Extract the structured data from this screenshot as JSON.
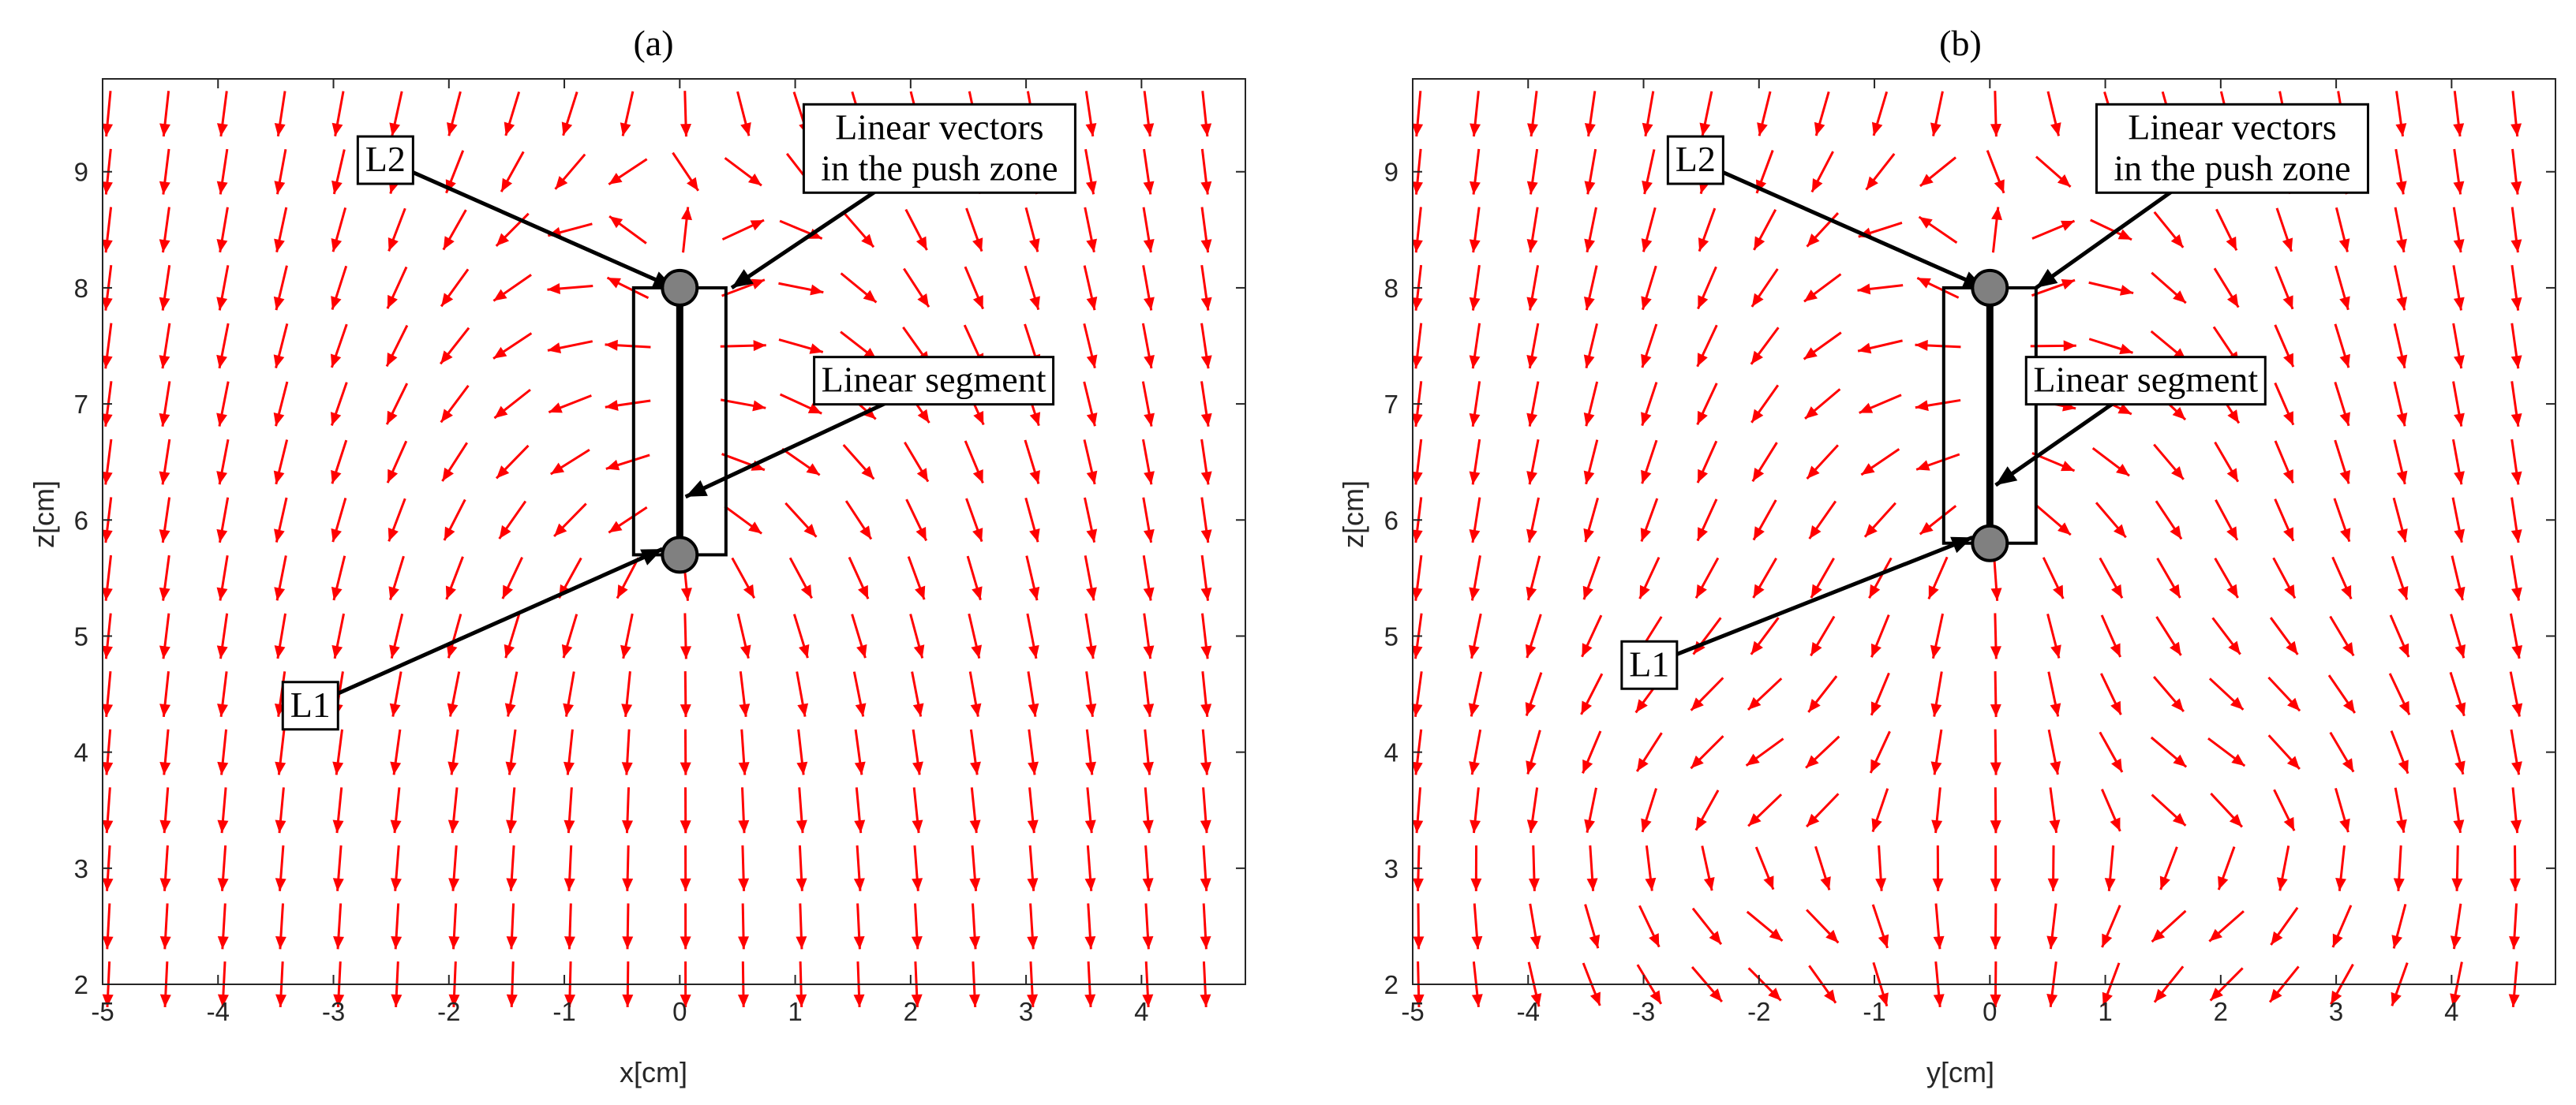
{
  "chart_data": [
    {
      "type": "quiver",
      "title": "(a)",
      "xlabel": "x[cm]",
      "ylabel": "z[cm]",
      "xlim": [
        -5,
        4.9
      ],
      "ylim": [
        2,
        9.8
      ],
      "xticks": [
        "-5",
        "-4",
        "-3",
        "-2",
        "-1",
        "0",
        "1",
        "2",
        "3",
        "4"
      ],
      "yticks": [
        "2",
        "3",
        "4",
        "5",
        "6",
        "7",
        "8",
        "9"
      ],
      "grid": false,
      "arrow_color": "#ff0000",
      "segment": {
        "x": 0,
        "z_bottom": 5.7,
        "z_top": 8.0
      },
      "rectangle": {
        "x_min": -0.4,
        "x_max": 0.4,
        "z_min": 5.7,
        "z_max": 8.0
      },
      "points": [
        {
          "name": "L1",
          "x": 0,
          "z": 5.7
        },
        {
          "name": "L2",
          "x": 0,
          "z": 8.0
        }
      ],
      "annotations": [
        {
          "text": "L2",
          "target_x": -0.05,
          "target_z": 8.0,
          "text_x": -2.55,
          "text_z": 9.1
        },
        {
          "text": "L1",
          "target_x": -0.15,
          "target_z": 5.75,
          "text_x": -3.2,
          "text_z": 4.4
        },
        {
          "text": "Linear vectors",
          "text2": "in the push zone",
          "target_x": 0.45,
          "target_z": 8.0,
          "text_x": 2.25,
          "text_z": 9.2
        },
        {
          "text": "Linear segment",
          "target_x": 0.05,
          "target_z": 6.2,
          "text_x": 2.2,
          "text_z": 7.2
        }
      ],
      "field": {
        "grid_x_step": 0.5,
        "grid_z_step": 0.5,
        "model": "repelling_segment_a"
      }
    },
    {
      "type": "quiver",
      "title": "(b)",
      "xlabel": "y[cm]",
      "ylabel": "z[cm]",
      "xlim": [
        -5,
        4.9
      ],
      "ylim": [
        2,
        9.8
      ],
      "xticks": [
        "-5",
        "-4",
        "-3",
        "-2",
        "-1",
        "0",
        "1",
        "2",
        "3",
        "4"
      ],
      "yticks": [
        "2",
        "3",
        "4",
        "5",
        "6",
        "7",
        "8",
        "9"
      ],
      "grid": false,
      "arrow_color": "#ff0000",
      "segment": {
        "x": 0,
        "z_bottom": 5.8,
        "z_top": 8.0
      },
      "rectangle": {
        "x_min": -0.4,
        "x_max": 0.4,
        "z_min": 5.8,
        "z_max": 8.0
      },
      "points": [
        {
          "name": "L1",
          "x": 0,
          "z": 5.8
        },
        {
          "name": "L2",
          "x": 0,
          "z": 8.0
        }
      ],
      "annotations": [
        {
          "text": "L2",
          "target_x": -0.05,
          "target_z": 8.0,
          "text_x": -2.55,
          "text_z": 9.1
        },
        {
          "text": "L1",
          "target_x": -0.15,
          "target_z": 5.85,
          "text_x": -2.95,
          "text_z": 4.75
        },
        {
          "text": "Linear vectors",
          "text2": "in the push zone",
          "target_x": 0.4,
          "target_z": 8.0,
          "text_x": 2.1,
          "text_z": 9.2
        },
        {
          "text": "Linear segment",
          "target_x": 0.05,
          "target_z": 6.3,
          "text_x": 1.35,
          "text_z": 7.2
        }
      ],
      "field": {
        "grid_x_step": 0.5,
        "grid_z_step": 0.5,
        "model": "repelling_segment_b"
      }
    }
  ]
}
